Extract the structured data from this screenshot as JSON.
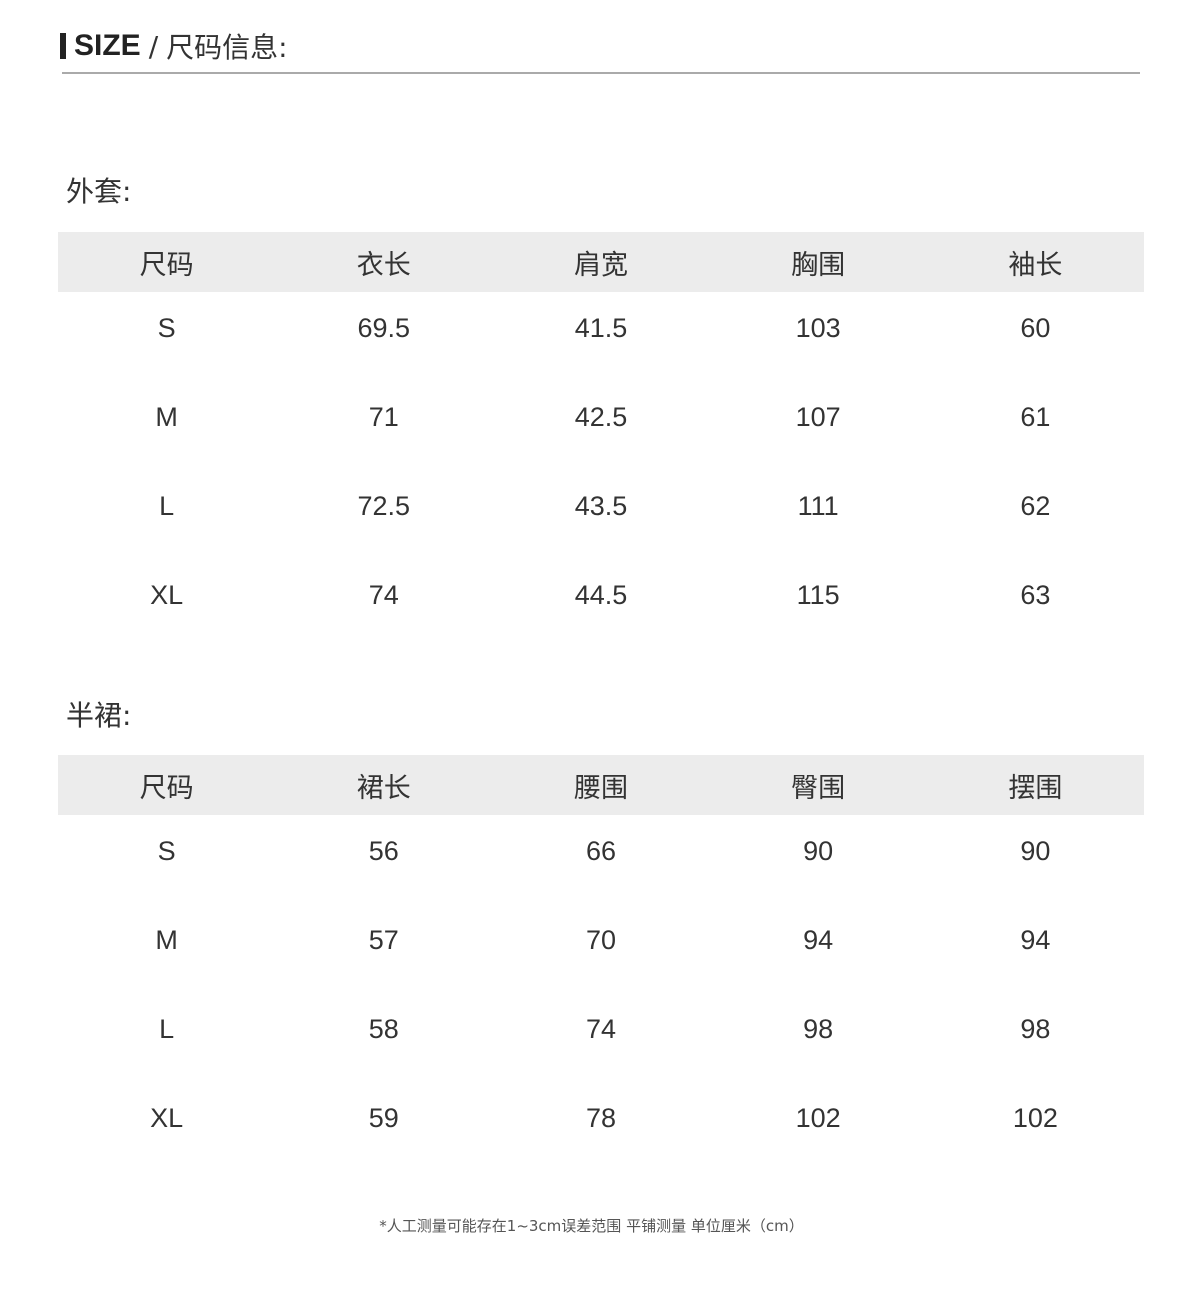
{
  "header": {
    "title_en": "SIZE",
    "separator": "/",
    "title_cn": "尺码信息:"
  },
  "tables": [
    {
      "label": "外套:",
      "columns": [
        "尺码",
        "衣长",
        "肩宽",
        "胸围",
        "袖长"
      ],
      "rows": [
        [
          "S",
          "69.5",
          "41.5",
          "103",
          "60"
        ],
        [
          "M",
          "71",
          "42.5",
          "107",
          "61"
        ],
        [
          "L",
          "72.5",
          "43.5",
          "111",
          "62"
        ],
        [
          "XL",
          "74",
          "44.5",
          "115",
          "63"
        ]
      ]
    },
    {
      "label": "半裙:",
      "columns": [
        "尺码",
        "裙长",
        "腰围",
        "臀围",
        "摆围"
      ],
      "rows": [
        [
          "S",
          "56",
          "66",
          "90",
          "90"
        ],
        [
          "M",
          "57",
          "70",
          "94",
          "94"
        ],
        [
          "L",
          "58",
          "74",
          "98",
          "98"
        ],
        [
          "XL",
          "59",
          "78",
          "102",
          "102"
        ]
      ]
    }
  ],
  "note": "*人工测量可能存在1~3cm误差范围 平铺测量 单位厘米（cm）"
}
